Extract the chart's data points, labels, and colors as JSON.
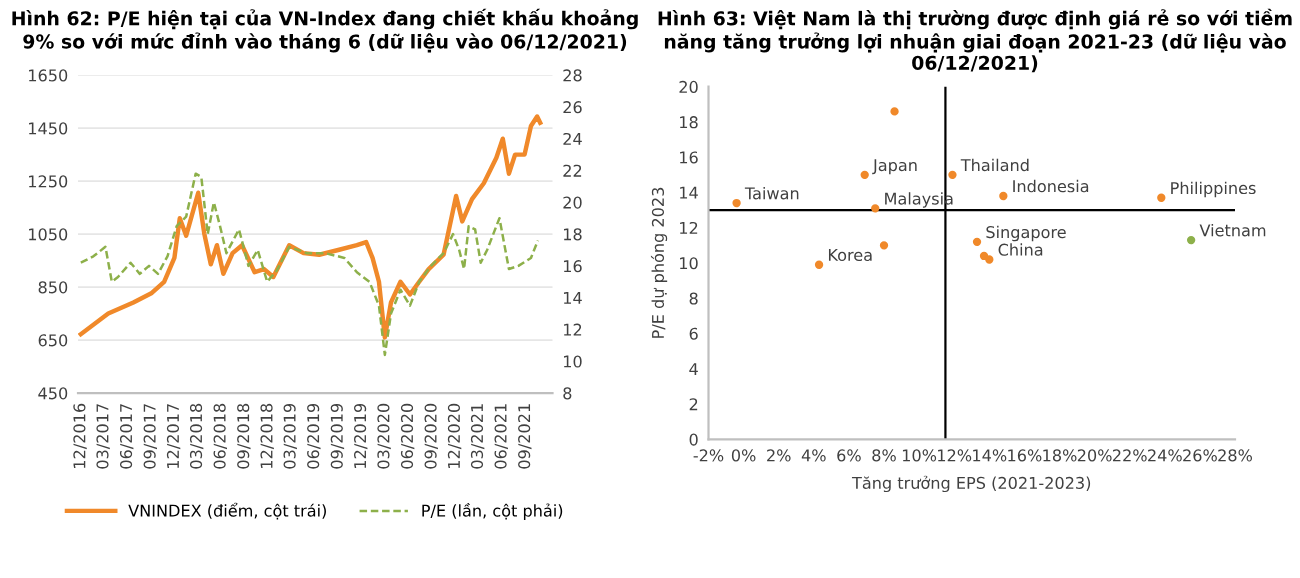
{
  "chart_data": [
    {
      "type": "line",
      "title": "Hình 62: P/E hiện tại của VN-Index đang chiết khấu khoảng 9% so với mức đỉnh vào tháng 6 (dữ liệu vào 06/12/2021)",
      "xlim": [
        "2016-11-20",
        "2021-12-15"
      ],
      "xticks": [
        {
          "value": "2016-12-01",
          "label": "12/2016"
        },
        {
          "value": "2017-03-01",
          "label": "03/2017"
        },
        {
          "value": "2017-06-01",
          "label": "06/2017"
        },
        {
          "value": "2017-09-01",
          "label": "09/2017"
        },
        {
          "value": "2017-12-01",
          "label": "12/2017"
        },
        {
          "value": "2018-03-01",
          "label": "03/2018"
        },
        {
          "value": "2018-06-01",
          "label": "06/2018"
        },
        {
          "value": "2018-09-01",
          "label": "09/2018"
        },
        {
          "value": "2018-12-01",
          "label": "12/2018"
        },
        {
          "value": "2019-03-01",
          "label": "03/2019"
        },
        {
          "value": "2019-06-01",
          "label": "06/2019"
        },
        {
          "value": "2019-09-01",
          "label": "09/2019"
        },
        {
          "value": "2019-12-01",
          "label": "12/2019"
        },
        {
          "value": "2020-03-01",
          "label": "03/2020"
        },
        {
          "value": "2020-06-01",
          "label": "06/2020"
        },
        {
          "value": "2020-09-01",
          "label": "09/2020"
        },
        {
          "value": "2020-12-01",
          "label": "12/2020"
        },
        {
          "value": "2021-03-01",
          "label": "03/2021"
        },
        {
          "value": "2021-06-01",
          "label": "06/2021"
        },
        {
          "value": "2021-09-01",
          "label": "09/2021"
        }
      ],
      "ylim": [
        450,
        1650
      ],
      "yticks": [
        450,
        650,
        850,
        1050,
        1250,
        1450,
        1650
      ],
      "y2lim": [
        8,
        28
      ],
      "y2ticks": [
        8,
        10,
        12,
        14,
        16,
        18,
        20,
        22,
        24,
        26,
        28
      ],
      "grid": "y",
      "legend": "bottom",
      "series": [
        {
          "name": "VNINDEX (điểm, cột trái)",
          "color": "#f0892a",
          "line_style": "solid",
          "x": [
            "2016-12-01",
            "2017-03-18",
            "2017-06-24",
            "2017-09-04",
            "2017-10-22",
            "2017-12-01",
            "2017-12-22",
            "2018-01-16",
            "2018-03-04",
            "2018-03-28",
            "2018-04-22",
            "2018-05-16",
            "2018-06-10",
            "2018-07-16",
            "2018-08-22",
            "2018-10-10",
            "2018-11-16",
            "2018-12-22",
            "2019-02-22",
            "2019-04-19",
            "2019-06-19",
            "2019-09-01",
            "2019-11-13",
            "2019-12-19",
            "2020-01-13",
            "2020-02-07",
            "2020-03-01",
            "2020-03-25",
            "2020-05-01",
            "2020-06-07",
            "2020-07-13",
            "2020-08-19",
            "2020-10-16",
            "2020-12-04",
            "2020-12-28",
            "2021-02-04",
            "2021-03-22",
            "2021-05-10",
            "2021-06-04",
            "2021-06-28",
            "2021-07-22",
            "2021-08-28",
            "2021-09-22",
            "2021-10-16",
            "2021-10-28"
          ],
          "values": [
            672,
            750,
            792,
            828,
            870,
            960,
            1110,
            1044,
            1206,
            1050,
            936,
            1008,
            900,
            978,
            1008,
            906,
            918,
            888,
            1008,
            978,
            972,
            990,
            1008,
            1020,
            960,
            870,
            660,
            792,
            870,
            822,
            870,
            918,
            972,
            1194,
            1098,
            1182,
            1242,
            1338,
            1410,
            1278,
            1350,
            1350,
            1458,
            1494,
            1470
          ]
        },
        {
          "name": "P/E (lần, cột phải)",
          "color": "#8db04a",
          "line_style": "dashed",
          "axis": "y2",
          "x": [
            "2016-12-01",
            "2017-01-19",
            "2017-03-07",
            "2017-04-01",
            "2017-04-25",
            "2017-06-13",
            "2017-07-19",
            "2017-08-24",
            "2017-09-28",
            "2017-11-04",
            "2017-12-10",
            "2018-01-16",
            "2018-02-22",
            "2018-03-16",
            "2018-04-10",
            "2018-05-04",
            "2018-05-28",
            "2018-06-22",
            "2018-08-10",
            "2018-09-16",
            "2018-10-22",
            "2018-11-28",
            "2019-01-04",
            "2019-02-22",
            "2019-05-01",
            "2019-07-13",
            "2019-09-25",
            "2019-11-13",
            "2020-01-01",
            "2020-02-07",
            "2020-03-01",
            "2020-03-25",
            "2020-05-01",
            "2020-06-07",
            "2020-07-13",
            "2020-08-28",
            "2020-10-16",
            "2020-11-22",
            "2020-12-16",
            "2021-01-04",
            "2021-01-22",
            "2021-02-16",
            "2021-03-10",
            "2021-04-04",
            "2021-05-22",
            "2021-06-28",
            "2021-08-04",
            "2021-09-22",
            "2021-10-19"
          ],
          "values": [
            16.2,
            16.6,
            17.2,
            15.0,
            15.3,
            16.2,
            15.5,
            16.0,
            15.5,
            16.6,
            18.5,
            19.1,
            21.8,
            21.6,
            18.0,
            20.0,
            18.5,
            16.8,
            18.3,
            16.0,
            17.0,
            15.0,
            15.7,
            17.2,
            16.8,
            16.8,
            16.5,
            15.6,
            15.0,
            13.5,
            10.4,
            13.0,
            14.5,
            13.5,
            15.0,
            16.0,
            16.8,
            18.0,
            17.0,
            15.8,
            18.5,
            18.3,
            16.2,
            17.0,
            19.0,
            15.8,
            16.0,
            16.5,
            17.6
          ]
        }
      ]
    },
    {
      "type": "scatter",
      "title": "Hình 63: Việt Nam là thị trường được định giá rẻ so với tiềm năng tăng trưởng lợi nhuận giai đoạn 2021-23 (dữ liệu vào 06/12/2021)",
      "xlabel": "Tăng trưởng EPS (2021-2023)",
      "ylabel": "P/E dự phóng 2023",
      "xlim": [
        -2,
        28
      ],
      "xticks": [
        {
          "value": -2,
          "label": "-2%"
        },
        {
          "value": 0,
          "label": "0%"
        },
        {
          "value": 2,
          "label": "2%"
        },
        {
          "value": 4,
          "label": "4%"
        },
        {
          "value": 6,
          "label": "6%"
        },
        {
          "value": 8,
          "label": "8%"
        },
        {
          "value": 10,
          "label": "10%"
        },
        {
          "value": 12,
          "label": "12%"
        },
        {
          "value": 14,
          "label": "14%"
        },
        {
          "value": 16,
          "label": "16%"
        },
        {
          "value": 18,
          "label": "18%"
        },
        {
          "value": 20,
          "label": "20%"
        },
        {
          "value": 22,
          "label": "22%"
        },
        {
          "value": 24,
          "label": "24%"
        },
        {
          "value": 26,
          "label": "26%"
        },
        {
          "value": 28,
          "label": "28%"
        }
      ],
      "ylim": [
        0,
        20
      ],
      "yticks": [
        0,
        2,
        4,
        6,
        8,
        10,
        12,
        14,
        16,
        18,
        20
      ],
      "marker": "circle",
      "ref_lines": [
        {
          "axis": "x",
          "value": 11.5,
          "color": "#000000"
        },
        {
          "axis": "y",
          "value": 13.0,
          "color": "#000000"
        }
      ],
      "series": [
        {
          "x": [
            -0.4,
            8.6,
            6.9,
            7.5,
            11.9,
            14.8,
            23.8,
            8.0,
            4.3,
            13.3,
            13.7,
            14.0,
            25.5
          ],
          "values": [
            13.4,
            18.6,
            15.0,
            13.1,
            15.0,
            13.8,
            13.7,
            11.0,
            9.9,
            11.2,
            10.4,
            10.2,
            11.3
          ],
          "colors": [
            "#f0892a",
            "#f0892a",
            "#f0892a",
            "#f0892a",
            "#f0892a",
            "#f0892a",
            "#f0892a",
            "#f0892a",
            "#f0892a",
            "#f0892a",
            "#f0892a",
            "#f0892a",
            "#8db04a"
          ]
        }
      ],
      "annotations": [
        {
          "text": "Taiwan",
          "x": -0.4,
          "y": 13.4
        },
        {
          "text": "Japan",
          "x": 6.9,
          "y": 15.0
        },
        {
          "text": "Malaysia",
          "x": 7.5,
          "y": 13.1
        },
        {
          "text": "Thailand",
          "x": 11.9,
          "y": 15.0
        },
        {
          "text": "Indonesia",
          "x": 14.8,
          "y": 13.8
        },
        {
          "text": "Philippines",
          "x": 23.8,
          "y": 13.7
        },
        {
          "text": "Korea",
          "x": 4.3,
          "y": 9.9
        },
        {
          "text": "Singapore",
          "x": 13.3,
          "y": 11.2
        },
        {
          "text": "China",
          "x": 14.0,
          "y": 10.2
        },
        {
          "text": "Vietnam",
          "x": 25.5,
          "y": 11.3
        }
      ]
    }
  ]
}
